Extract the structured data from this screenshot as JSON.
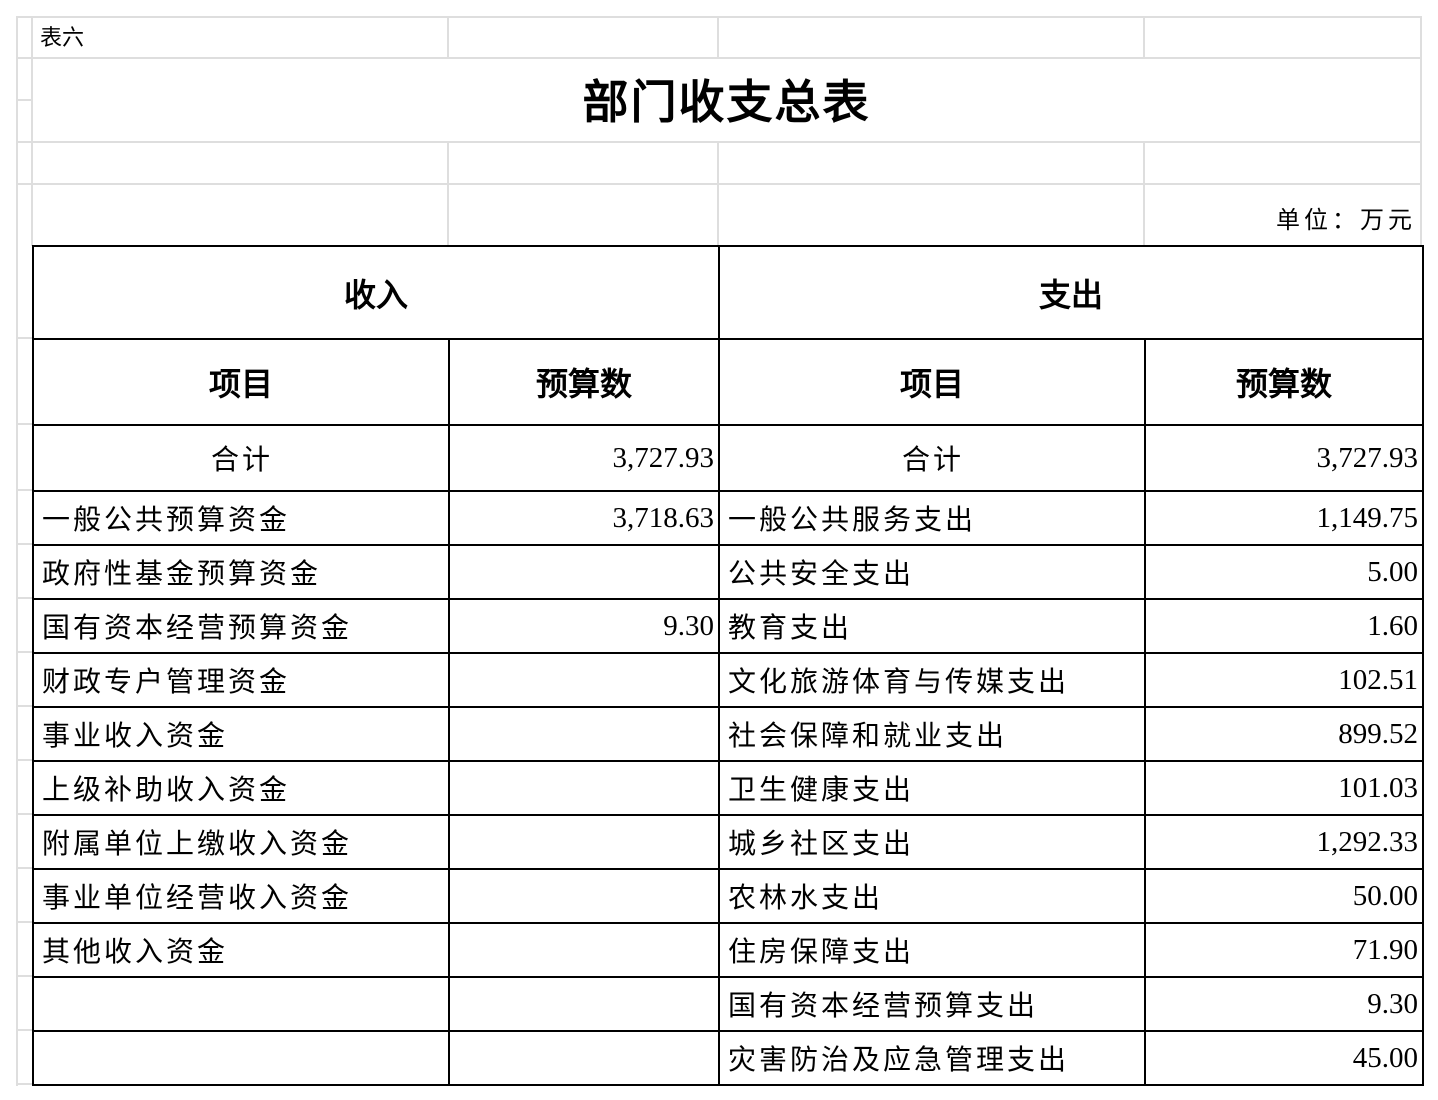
{
  "caption": "表六",
  "title": "部门收支总表",
  "unit": "单位：万元",
  "income_header": "收入",
  "expense_header": "支出",
  "col_item": "项目",
  "col_budget": "预算数",
  "total": {
    "income_label": "合计",
    "income_value": "3,727.93",
    "expense_label": "合计",
    "expense_value": "3,727.93"
  },
  "rows": [
    {
      "income_item": "一般公共预算资金",
      "income_value": "3,718.63",
      "expense_item": "一般公共服务支出",
      "expense_value": "1,149.75"
    },
    {
      "income_item": "政府性基金预算资金",
      "income_value": "",
      "expense_item": "公共安全支出",
      "expense_value": "5.00"
    },
    {
      "income_item": "国有资本经营预算资金",
      "income_value": "9.30",
      "expense_item": "教育支出",
      "expense_value": "1.60"
    },
    {
      "income_item": "财政专户管理资金",
      "income_value": "",
      "expense_item": "文化旅游体育与传媒支出",
      "expense_value": "102.51"
    },
    {
      "income_item": "事业收入资金",
      "income_value": "",
      "expense_item": "社会保障和就业支出",
      "expense_value": "899.52"
    },
    {
      "income_item": "上级补助收入资金",
      "income_value": "",
      "expense_item": "卫生健康支出",
      "expense_value": "101.03"
    },
    {
      "income_item": "附属单位上缴收入资金",
      "income_value": "",
      "expense_item": "城乡社区支出",
      "expense_value": "1,292.33"
    },
    {
      "income_item": "事业单位经营收入资金",
      "income_value": "",
      "expense_item": "农林水支出",
      "expense_value": "50.00"
    },
    {
      "income_item": "其他收入资金",
      "income_value": "",
      "expense_item": "住房保障支出",
      "expense_value": "71.90"
    },
    {
      "income_item": "",
      "income_value": "",
      "expense_item": "国有资本经营预算支出",
      "expense_value": "9.30"
    },
    {
      "income_item": "",
      "income_value": "",
      "expense_item": "灾害防治及应急管理支出",
      "expense_value": "45.00"
    }
  ]
}
